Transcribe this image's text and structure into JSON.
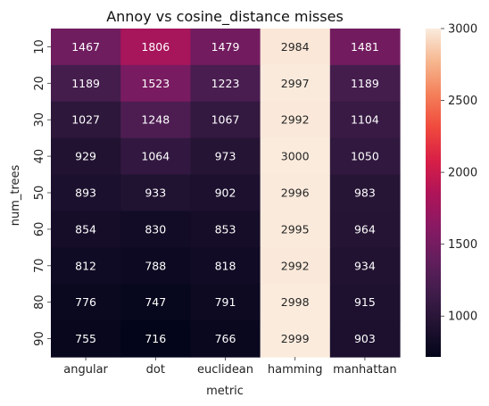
{
  "chart_data": {
    "type": "heatmap",
    "title": "Annoy vs cosine_distance misses",
    "xlabel": "metric",
    "ylabel": "num_trees",
    "x_categories": [
      "angular",
      "dot",
      "euclidean",
      "hamming",
      "manhattan"
    ],
    "y_categories": [
      "10",
      "20",
      "30",
      "40",
      "50",
      "60",
      "70",
      "80",
      "90"
    ],
    "values": [
      [
        1467,
        1806,
        1479,
        2984,
        1481
      ],
      [
        1189,
        1523,
        1223,
        2997,
        1189
      ],
      [
        1027,
        1248,
        1067,
        2992,
        1104
      ],
      [
        929,
        1064,
        973,
        3000,
        1050
      ],
      [
        893,
        933,
        902,
        2996,
        983
      ],
      [
        854,
        830,
        853,
        2995,
        964
      ],
      [
        812,
        788,
        818,
        2992,
        934
      ],
      [
        776,
        747,
        791,
        2998,
        915
      ],
      [
        755,
        716,
        766,
        2999,
        903
      ]
    ],
    "colorbar": {
      "colormap": "rocket",
      "vmin": 716,
      "vmax": 3000,
      "ticks": [
        1000,
        1500,
        2000,
        2500,
        3000
      ]
    },
    "annotated": true,
    "grid": false
  }
}
